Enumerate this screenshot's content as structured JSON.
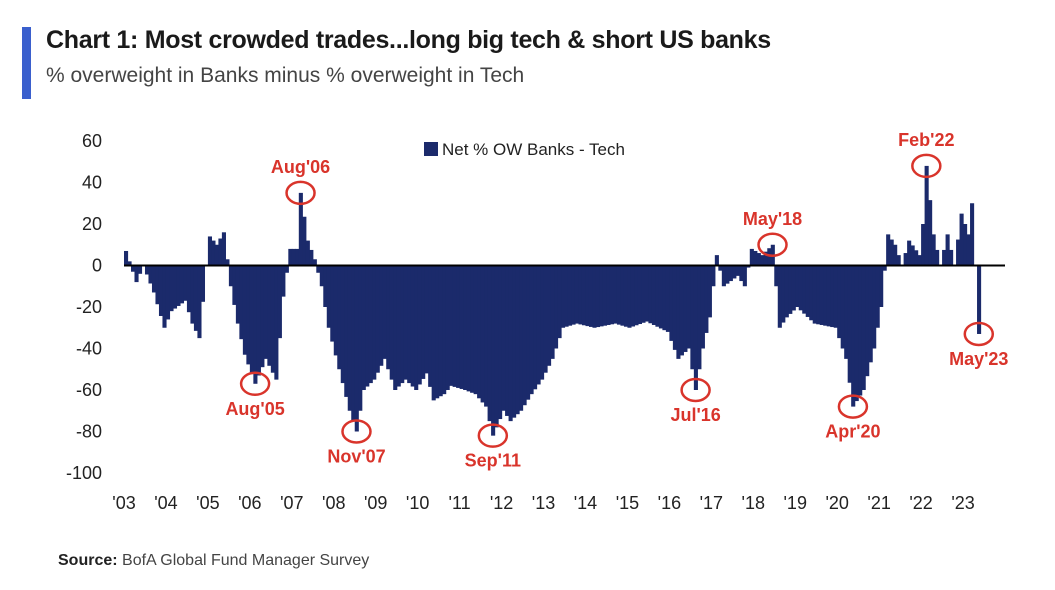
{
  "header": {
    "title": "Chart 1: Most crowded trades...long big tech & short US banks",
    "subtitle": "% overweight in Banks minus % overweight in Tech",
    "accent_color": "#3a5fcd"
  },
  "footer": {
    "source_label": "Source:",
    "source_text": "BofA Global Fund Manager Survey"
  },
  "chart_data": {
    "type": "bar",
    "bar_color": "#1b2a6b",
    "annotation_color": "#d9342b",
    "legend": {
      "label": "Net % OW Banks - Tech",
      "placement": "top-center"
    },
    "ylim": [
      -100,
      60
    ],
    "yticks": [
      60,
      40,
      20,
      0,
      -20,
      -40,
      -60,
      -80,
      -100
    ],
    "xlim": [
      2003,
      2024
    ],
    "xticks": [
      {
        "label": "'03",
        "year": 2003
      },
      {
        "label": "'04",
        "year": 2004
      },
      {
        "label": "'05",
        "year": 2005
      },
      {
        "label": "'06",
        "year": 2006
      },
      {
        "label": "'07",
        "year": 2007
      },
      {
        "label": "'08",
        "year": 2008
      },
      {
        "label": "'09",
        "year": 2009
      },
      {
        "label": "'10",
        "year": 2010
      },
      {
        "label": "'11",
        "year": 2011
      },
      {
        "label": "'12",
        "year": 2012
      },
      {
        "label": "'13",
        "year": 2013
      },
      {
        "label": "'14",
        "year": 2014
      },
      {
        "label": "'15",
        "year": 2015
      },
      {
        "label": "'16",
        "year": 2016
      },
      {
        "label": "'17",
        "year": 2017
      },
      {
        "label": "'18",
        "year": 2018
      },
      {
        "label": "'19",
        "year": 2019
      },
      {
        "label": "'20",
        "year": 2020
      },
      {
        "label": "'21",
        "year": 2021
      },
      {
        "label": "'22",
        "year": 2022
      },
      {
        "label": "'23",
        "year": 2023
      }
    ],
    "keypoints": [
      [
        "2003-01",
        7
      ],
      [
        "2003-02",
        2
      ],
      [
        "2003-04",
        -8
      ],
      [
        "2003-06",
        0
      ],
      [
        "2003-09",
        -13
      ],
      [
        "2003-12",
        -30
      ],
      [
        "2004-02",
        -22
      ],
      [
        "2004-06",
        -17
      ],
      [
        "2004-08",
        -28
      ],
      [
        "2004-10",
        -35
      ],
      [
        "2004-12",
        0
      ],
      [
        "2005-01",
        14
      ],
      [
        "2005-03",
        10
      ],
      [
        "2005-05",
        16
      ],
      [
        "2005-07",
        -10
      ],
      [
        "2005-09",
        -28
      ],
      [
        "2005-11",
        -43
      ],
      [
        "2006-02",
        -57
      ],
      [
        "2006-05",
        -45
      ],
      [
        "2006-08",
        -55
      ],
      [
        "2006-10",
        -15
      ],
      [
        "2006-12",
        8
      ],
      [
        "2007-02",
        8
      ],
      [
        "2007-03",
        35
      ],
      [
        "2007-05",
        12
      ],
      [
        "2007-07",
        3
      ],
      [
        "2007-09",
        -10
      ],
      [
        "2007-11",
        -30
      ],
      [
        "2008-02",
        -50
      ],
      [
        "2008-05",
        -70
      ],
      [
        "2008-07",
        -80
      ],
      [
        "2008-09",
        -60
      ],
      [
        "2008-12",
        -55
      ],
      [
        "2009-03",
        -45
      ],
      [
        "2009-06",
        -60
      ],
      [
        "2009-09",
        -55
      ],
      [
        "2009-12",
        -60
      ],
      [
        "2010-03",
        -52
      ],
      [
        "2010-05",
        -65
      ],
      [
        "2010-08",
        -62
      ],
      [
        "2010-10",
        -58
      ],
      [
        "2011-02",
        -60
      ],
      [
        "2011-05",
        -62
      ],
      [
        "2011-08",
        -68
      ],
      [
        "2011-09",
        -75
      ],
      [
        "2011-10",
        -82
      ],
      [
        "2012-01",
        -70
      ],
      [
        "2012-03",
        -75
      ],
      [
        "2012-06",
        -70
      ],
      [
        "2012-09",
        -62
      ],
      [
        "2012-12",
        -55
      ],
      [
        "2013-03",
        -45
      ],
      [
        "2013-06",
        -30
      ],
      [
        "2013-10",
        -28
      ],
      [
        "2014-03",
        -30
      ],
      [
        "2014-09",
        -28
      ],
      [
        "2015-01",
        -30
      ],
      [
        "2015-06",
        -27
      ],
      [
        "2015-12",
        -32
      ],
      [
        "2016-03",
        -45
      ],
      [
        "2016-06",
        -40
      ],
      [
        "2016-08",
        -60
      ],
      [
        "2016-10",
        -40
      ],
      [
        "2016-12",
        -25
      ],
      [
        "2017-02",
        5
      ],
      [
        "2017-04",
        -10
      ],
      [
        "2017-08",
        -5
      ],
      [
        "2017-10",
        -10
      ],
      [
        "2017-12",
        8
      ],
      [
        "2018-03",
        5
      ],
      [
        "2018-06",
        10
      ],
      [
        "2018-07",
        -10
      ],
      [
        "2018-08",
        -30
      ],
      [
        "2018-10",
        -25
      ],
      [
        "2019-01",
        -20
      ],
      [
        "2019-06",
        -28
      ],
      [
        "2019-12",
        -30
      ],
      [
        "2020-03",
        -45
      ],
      [
        "2020-05",
        -68
      ],
      [
        "2020-08",
        -60
      ],
      [
        "2020-11",
        -40
      ],
      [
        "2021-01",
        -20
      ],
      [
        "2021-03",
        15
      ],
      [
        "2021-05",
        10
      ],
      [
        "2021-07",
        0
      ],
      [
        "2021-09",
        12
      ],
      [
        "2021-12",
        5
      ],
      [
        "2022-01",
        20
      ],
      [
        "2022-02",
        48
      ],
      [
        "2022-04",
        15
      ],
      [
        "2022-06",
        0
      ],
      [
        "2022-08",
        15
      ],
      [
        "2022-10",
        0
      ],
      [
        "2022-12",
        25
      ],
      [
        "2023-02",
        15
      ],
      [
        "2023-03",
        30
      ],
      [
        "2023-04",
        0
      ],
      [
        "2023-05",
        -33
      ]
    ],
    "annotations": [
      {
        "label": "Aug'05",
        "date": "2006-02",
        "value": -57,
        "label_pos": "below"
      },
      {
        "label": "Aug'06",
        "date": "2007-03",
        "value": 35,
        "label_pos": "above"
      },
      {
        "label": "Nov'07",
        "date": "2008-07",
        "value": -80,
        "label_pos": "below"
      },
      {
        "label": "Sep'11",
        "date": "2011-10",
        "value": -82,
        "label_pos": "below"
      },
      {
        "label": "Jul'16",
        "date": "2016-08",
        "value": -60,
        "label_pos": "below"
      },
      {
        "label": "May'18",
        "date": "2018-06",
        "value": 10,
        "label_pos": "above"
      },
      {
        "label": "Apr'20",
        "date": "2020-05",
        "value": -68,
        "label_pos": "below"
      },
      {
        "label": "Feb'22",
        "date": "2022-02",
        "value": 48,
        "label_pos": "above"
      },
      {
        "label": "May'23",
        "date": "2023-05",
        "value": -33,
        "label_pos": "below"
      }
    ]
  }
}
